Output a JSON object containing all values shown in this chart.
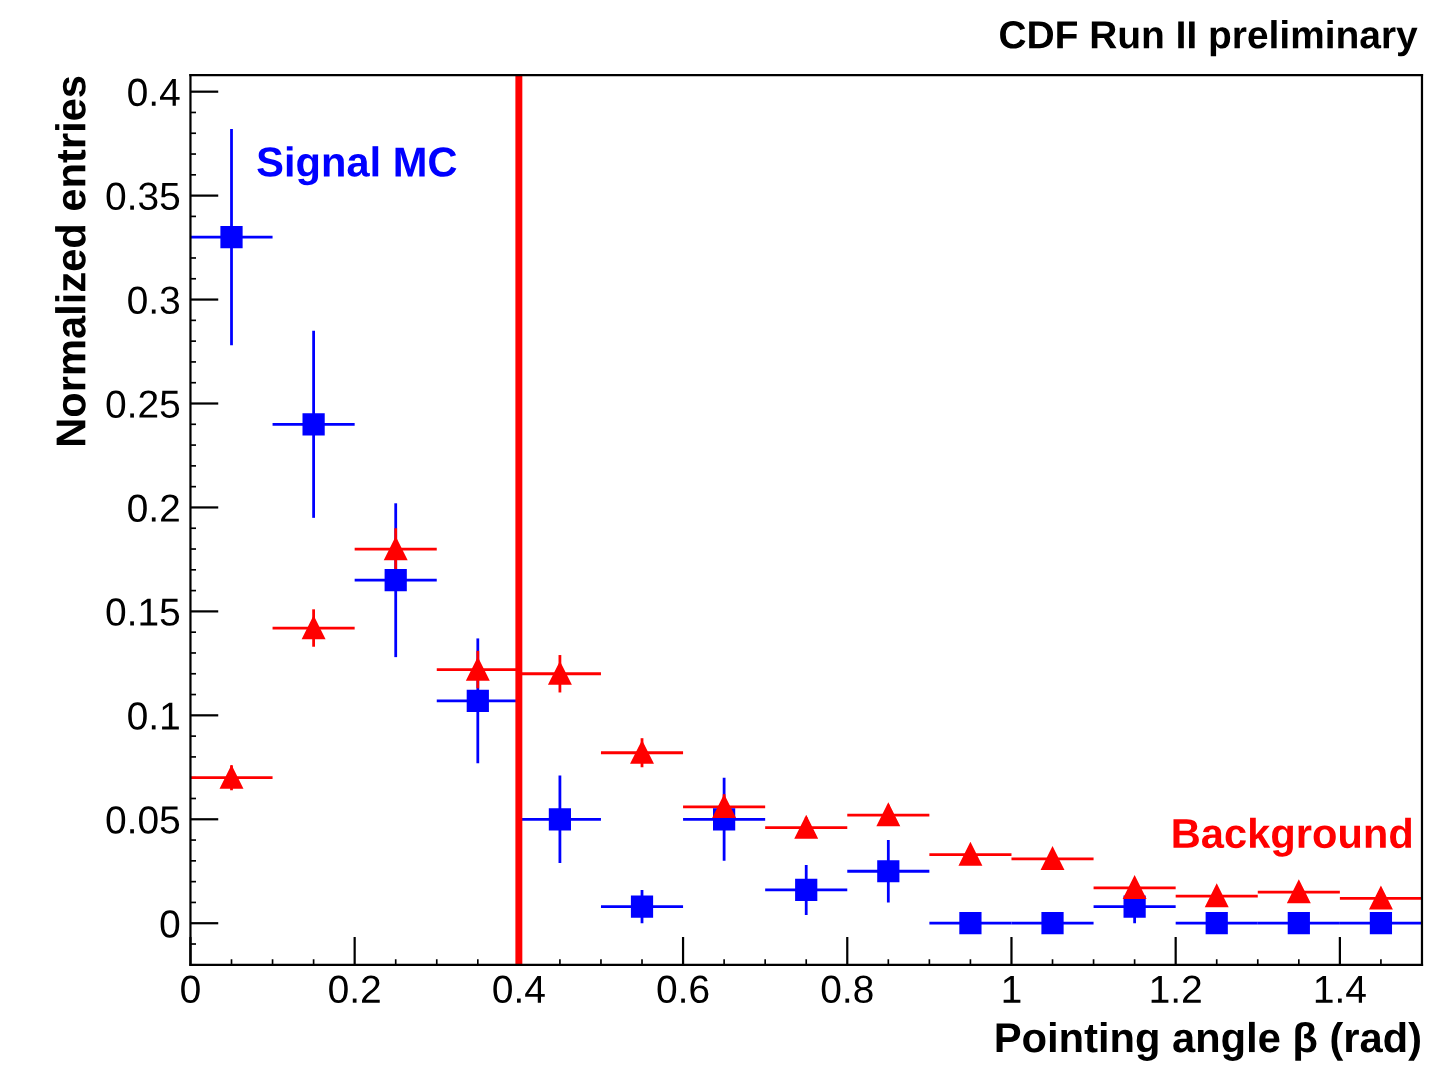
{
  "chart_data": {
    "type": "scatter",
    "title": "CDF Run II preliminary",
    "xlabel": "Pointing angle β (rad)",
    "ylabel": "Normalized entries",
    "x": [
      0.05,
      0.15,
      0.25,
      0.35,
      0.45,
      0.55,
      0.65,
      0.75,
      0.85,
      0.95,
      1.05,
      1.15,
      1.25,
      1.35,
      1.45
    ],
    "series": [
      {
        "name": "Signal MC",
        "color": "#0000ff",
        "marker": "square",
        "values": [
          0.33,
          0.24,
          0.165,
          0.107,
          0.05,
          0.008,
          0.05,
          0.016,
          0.025,
          0,
          0,
          0.008,
          0,
          0,
          0
        ],
        "errors": [
          0.052,
          0.045,
          0.037,
          0.03,
          0.021,
          0.008,
          0.02,
          0.012,
          0.015,
          0,
          0,
          0.008,
          0,
          0,
          0
        ],
        "xerrors": [
          0.05,
          0.05,
          0.05,
          0.05,
          0.05,
          0.05,
          0.05,
          0.05,
          0.05,
          0.05,
          0.05,
          0.05,
          0.05,
          0.05,
          0.05
        ]
      },
      {
        "name": "Background",
        "color": "#ff0000",
        "marker": "triangle",
        "values": [
          0.07,
          0.142,
          0.18,
          0.122,
          0.12,
          0.082,
          0.056,
          0.046,
          0.052,
          0.033,
          0.031,
          0.017,
          0.013,
          0.015,
          0.012
        ],
        "errors": [
          0.006,
          0.009,
          0.01,
          0.009,
          0.009,
          0.007,
          0.006,
          0.005,
          0.005,
          0.004,
          0.004,
          0.003,
          0.003,
          0.003,
          0.003
        ],
        "xerrors": [
          0.05,
          0.05,
          0.05,
          0.05,
          0.05,
          0.05,
          0.05,
          0.05,
          0.05,
          0.05,
          0.05,
          0.05,
          0.05,
          0.05,
          0.05
        ]
      }
    ],
    "xlim": [
      0,
      1.5
    ],
    "ylim": [
      -0.02,
      0.408
    ],
    "xticks": [
      0,
      0.2,
      0.4,
      0.6,
      0.8,
      1,
      1.2,
      1.4
    ],
    "yticks": [
      0,
      0.05,
      0.1,
      0.15,
      0.2,
      0.25,
      0.3,
      0.35,
      0.4
    ],
    "ref_lines": [
      {
        "axis": "x",
        "value": 0.4,
        "color": "#ff0000",
        "line_style": "solid"
      }
    ],
    "grid": false,
    "legend": false
  }
}
